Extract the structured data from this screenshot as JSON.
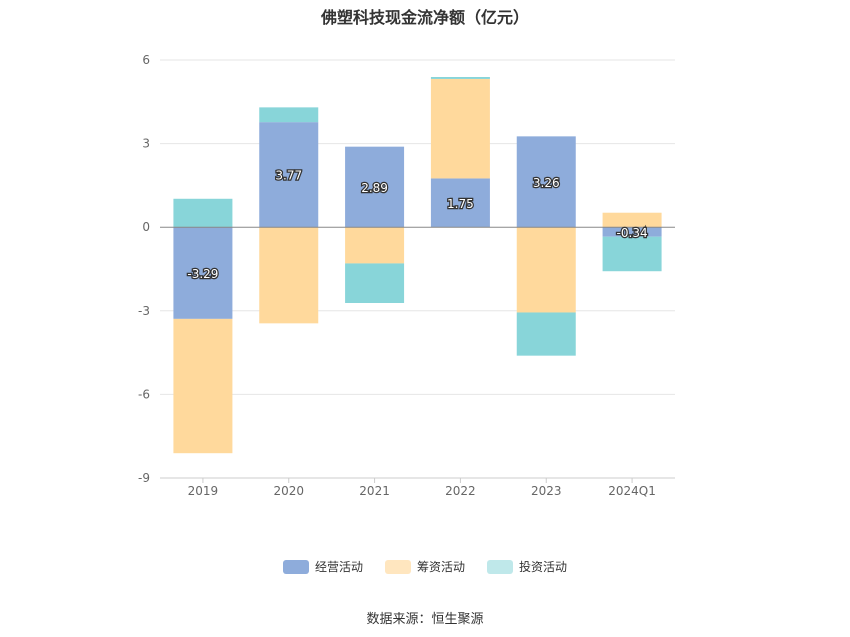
{
  "chart_data": {
    "type": "bar",
    "title": "佛塑科技现金流净额（亿元）",
    "categories": [
      "2019",
      "2020",
      "2021",
      "2022",
      "2023",
      "2024Q1"
    ],
    "ylim": [
      -9,
      6
    ],
    "yticks": [
      "6",
      "3",
      "0",
      "-3",
      "-6",
      "-9"
    ],
    "ytick_values": [
      6,
      3,
      0,
      -3,
      -6,
      -9
    ],
    "stacked": true,
    "grid": true,
    "legend_position": "bottom",
    "series": [
      {
        "name": "经营活动",
        "color": "#8eacdb",
        "values": [
          -3.29,
          3.77,
          2.89,
          1.75,
          3.26,
          -0.34
        ],
        "labels": [
          "-3.29",
          "3.77",
          "2.89",
          "1.75",
          "3.26",
          "-0.34"
        ]
      },
      {
        "name": "筹资活动",
        "color": "#ffd99c",
        "values": [
          -4.82,
          -3.45,
          -1.3,
          3.57,
          -3.06,
          0.52
        ]
      },
      {
        "name": "投资活动",
        "color": "#88d5d9",
        "values": [
          1.02,
          0.53,
          -1.42,
          0.07,
          -1.55,
          -1.24
        ]
      }
    ]
  },
  "source": "数据来源：恒生聚源"
}
